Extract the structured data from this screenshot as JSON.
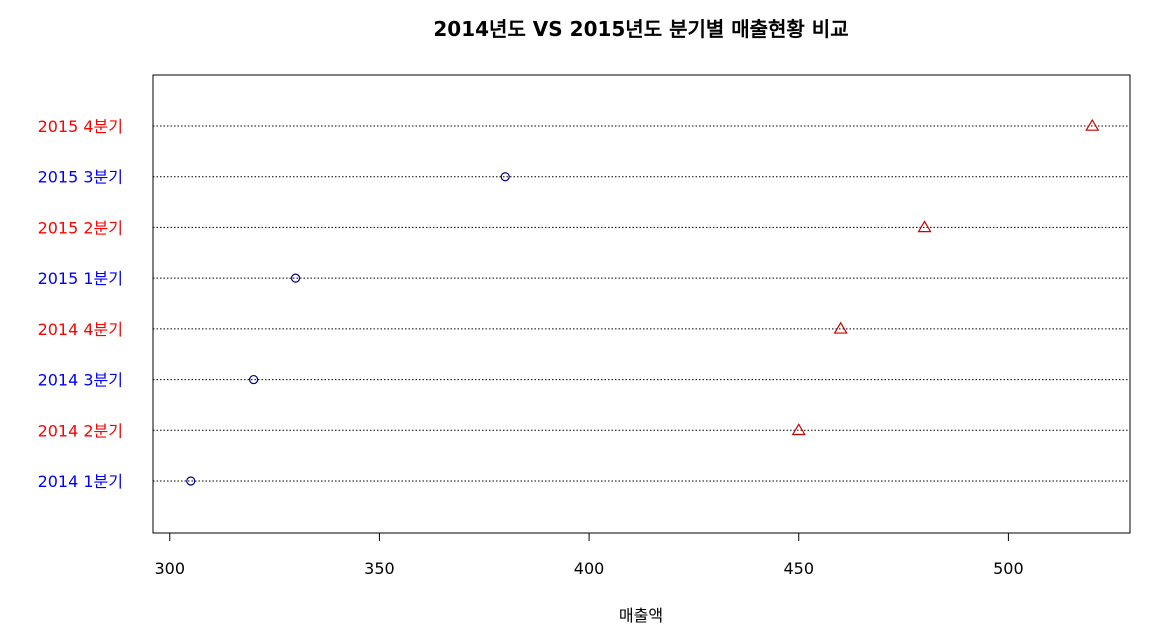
{
  "chart_data": {
    "type": "scatter",
    "title": "2014년도 VS 2015년도 분기별 매출현황 비교",
    "xlabel": "매출액",
    "ylabel": "",
    "xlim": [
      296,
      529
    ],
    "x_ticks": [
      300,
      350,
      400,
      450,
      500
    ],
    "categories": [
      "2014 1분기",
      "2014 2분기",
      "2014 3분기",
      "2014 4분기",
      "2015 1분기",
      "2015 2분기",
      "2015 3분기",
      "2015 4분기"
    ],
    "values": [
      305,
      450,
      320,
      460,
      330,
      480,
      380,
      520
    ],
    "label_colors": [
      "#0000ff",
      "#ff0000",
      "#0000ff",
      "#ff0000",
      "#0000ff",
      "#ff0000",
      "#0000ff",
      "#ff0000"
    ],
    "markers": [
      "circle",
      "triangle",
      "circle",
      "triangle",
      "circle",
      "triangle",
      "circle",
      "triangle"
    ],
    "marker_colors": [
      "#00008b",
      "#cc0000",
      "#00008b",
      "#cc0000",
      "#00008b",
      "#cc0000",
      "#00008b",
      "#cc0000"
    ],
    "gridlines": "dotted horizontal"
  }
}
